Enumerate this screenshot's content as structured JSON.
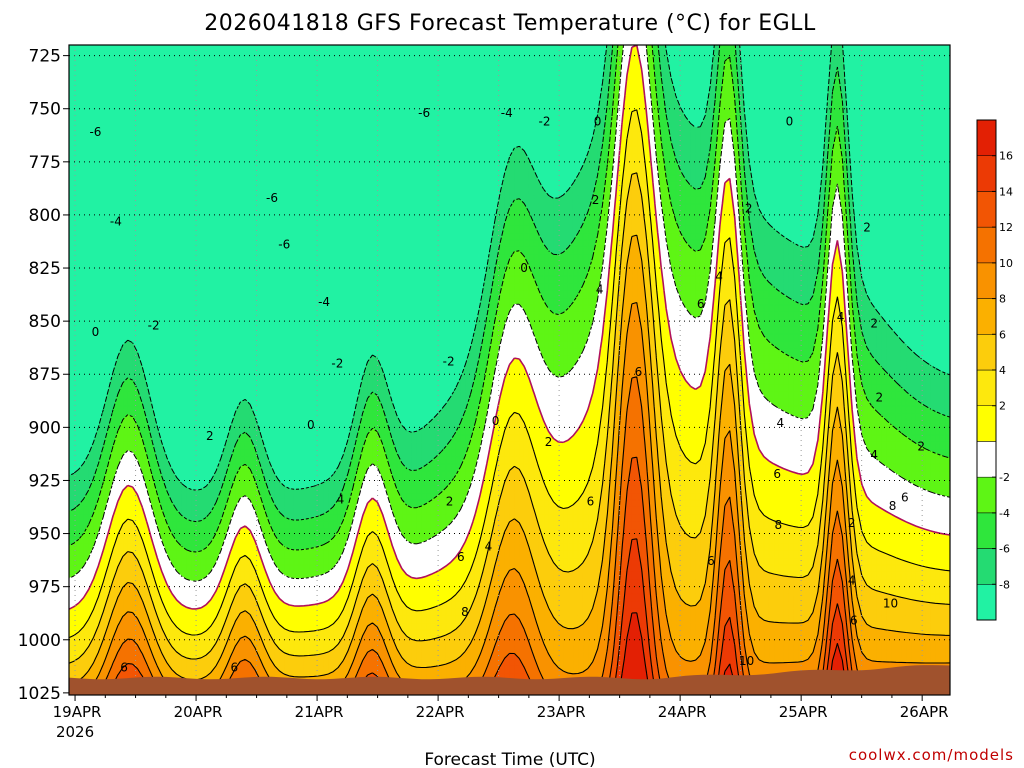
{
  "chart_data": {
    "type": "heatmap",
    "title": "2026041818 GFS Forecast Temperature (°C) for EGLL",
    "xlabel": "Forecast Time (UTC)",
    "credit": "coolwx.com/models",
    "x_ticks": [
      {
        "label": "19APR",
        "sub": "2026",
        "day": 0
      },
      {
        "label": "20APR",
        "sub": "",
        "day": 1
      },
      {
        "label": "21APR",
        "sub": "",
        "day": 2
      },
      {
        "label": "22APR",
        "sub": "",
        "day": 3
      },
      {
        "label": "23APR",
        "sub": "",
        "day": 4
      },
      {
        "label": "24APR",
        "sub": "",
        "day": 5
      },
      {
        "label": "25APR",
        "sub": "",
        "day": 6
      },
      {
        "label": "26APR",
        "sub": "",
        "day": 7
      }
    ],
    "x_range_days": [
      -0.05,
      7.23
    ],
    "y_pressure_levels_hPa": [
      725,
      750,
      775,
      800,
      825,
      850,
      875,
      900,
      925,
      950,
      975,
      1000,
      1025
    ],
    "y_range_hPa": [
      720,
      1026
    ],
    "colorbar": {
      "levels": [
        -10,
        -8,
        -6,
        -4,
        -2,
        0,
        2,
        4,
        6,
        8,
        10,
        12,
        14,
        16,
        18
      ],
      "tick_labels": [
        "-8",
        "-6",
        "-4",
        "-2",
        "2",
        "4",
        "6",
        "8",
        "10",
        "12",
        "14",
        "16"
      ],
      "colors": [
        "#21f2a3",
        "#24db72",
        "#2fe63c",
        "#5ef515",
        "#ffffff",
        "#ffff00",
        "#fde80d",
        "#fccd0c",
        "#fbb000",
        "#f99200",
        "#f57200",
        "#f25504",
        "#ec3a05",
        "#e32004"
      ]
    },
    "contour_labels": [
      {
        "text": "-6",
        "day": 0.2,
        "p": 761
      },
      {
        "text": "-4",
        "day": 0.4,
        "p": 803
      },
      {
        "text": "-2",
        "day": 0.77,
        "p": 852
      },
      {
        "text": "0",
        "day": 0.2,
        "p": 855
      },
      {
        "text": "2",
        "day": 1.32,
        "p": 904
      },
      {
        "text": "-6",
        "day": 1.93,
        "p": 792
      },
      {
        "text": "-6",
        "day": 2.05,
        "p": 814
      },
      {
        "text": "-4",
        "day": 2.44,
        "p": 841
      },
      {
        "text": "-2",
        "day": 2.57,
        "p": 870
      },
      {
        "text": "0",
        "day": 2.31,
        "p": 899
      },
      {
        "text": "4",
        "day": 2.6,
        "p": 934
      },
      {
        "text": "-6",
        "day": 3.42,
        "p": 752
      },
      {
        "text": "-4",
        "day": 4.23,
        "p": 752
      },
      {
        "text": "-2",
        "day": 4.6,
        "p": 756
      },
      {
        "text": "0",
        "day": 4.12,
        "p": 897
      },
      {
        "text": "-2",
        "day": 3.66,
        "p": 869
      },
      {
        "text": "2",
        "day": 3.67,
        "p": 935
      },
      {
        "text": "4",
        "day": 4.05,
        "p": 956
      },
      {
        "text": "6",
        "day": 3.78,
        "p": 961
      },
      {
        "text": "8",
        "day": 3.82,
        "p": 987
      },
      {
        "text": "0",
        "day": 4.4,
        "p": 825
      },
      {
        "text": "2",
        "day": 4.64,
        "p": 907
      },
      {
        "text": "6",
        "day": 5.05,
        "p": 935
      },
      {
        "text": "0",
        "day": 5.12,
        "p": 756
      },
      {
        "text": "2",
        "day": 5.1,
        "p": 793
      },
      {
        "text": "4",
        "day": 5.14,
        "p": 835
      },
      {
        "text": "6",
        "day": 5.52,
        "p": 874
      },
      {
        "text": "6",
        "day": 6.13,
        "p": 842
      },
      {
        "text": "4",
        "day": 6.31,
        "p": 829
      },
      {
        "text": "6",
        "day": 6.23,
        "p": 963
      },
      {
        "text": "2",
        "day": 6.6,
        "p": 797
      },
      {
        "text": "0",
        "day": 7.0,
        "p": 756
      },
      {
        "text": "4",
        "day": 6.91,
        "p": 898
      },
      {
        "text": "6",
        "day": 6.88,
        "p": 922
      },
      {
        "text": "8",
        "day": 6.89,
        "p": 946
      },
      {
        "text": "10",
        "day": 6.58,
        "p": 1010
      },
      {
        "text": "4",
        "day": 7.5,
        "p": 848
      },
      {
        "text": "2",
        "day": 7.76,
        "p": 806
      },
      {
        "text": "2",
        "day": 7.83,
        "p": 851
      },
      {
        "text": "2",
        "day": 7.88,
        "p": 886
      },
      {
        "text": "4",
        "day": 7.83,
        "p": 913
      },
      {
        "text": "2",
        "day": 7.61,
        "p": 945
      },
      {
        "text": "4",
        "day": 7.61,
        "p": 972
      },
      {
        "text": "6",
        "day": 7.63,
        "p": 991
      },
      {
        "text": "8",
        "day": 8.01,
        "p": 937
      },
      {
        "text": "6",
        "day": 8.13,
        "p": 933
      },
      {
        "text": "10",
        "day": 7.99,
        "p": 983
      },
      {
        "text": "2",
        "day": 8.29,
        "p": 909
      },
      {
        "text": "6",
        "day": 0.48,
        "p": 1013
      },
      {
        "text": "6",
        "day": 1.56,
        "p": 1013
      }
    ]
  }
}
